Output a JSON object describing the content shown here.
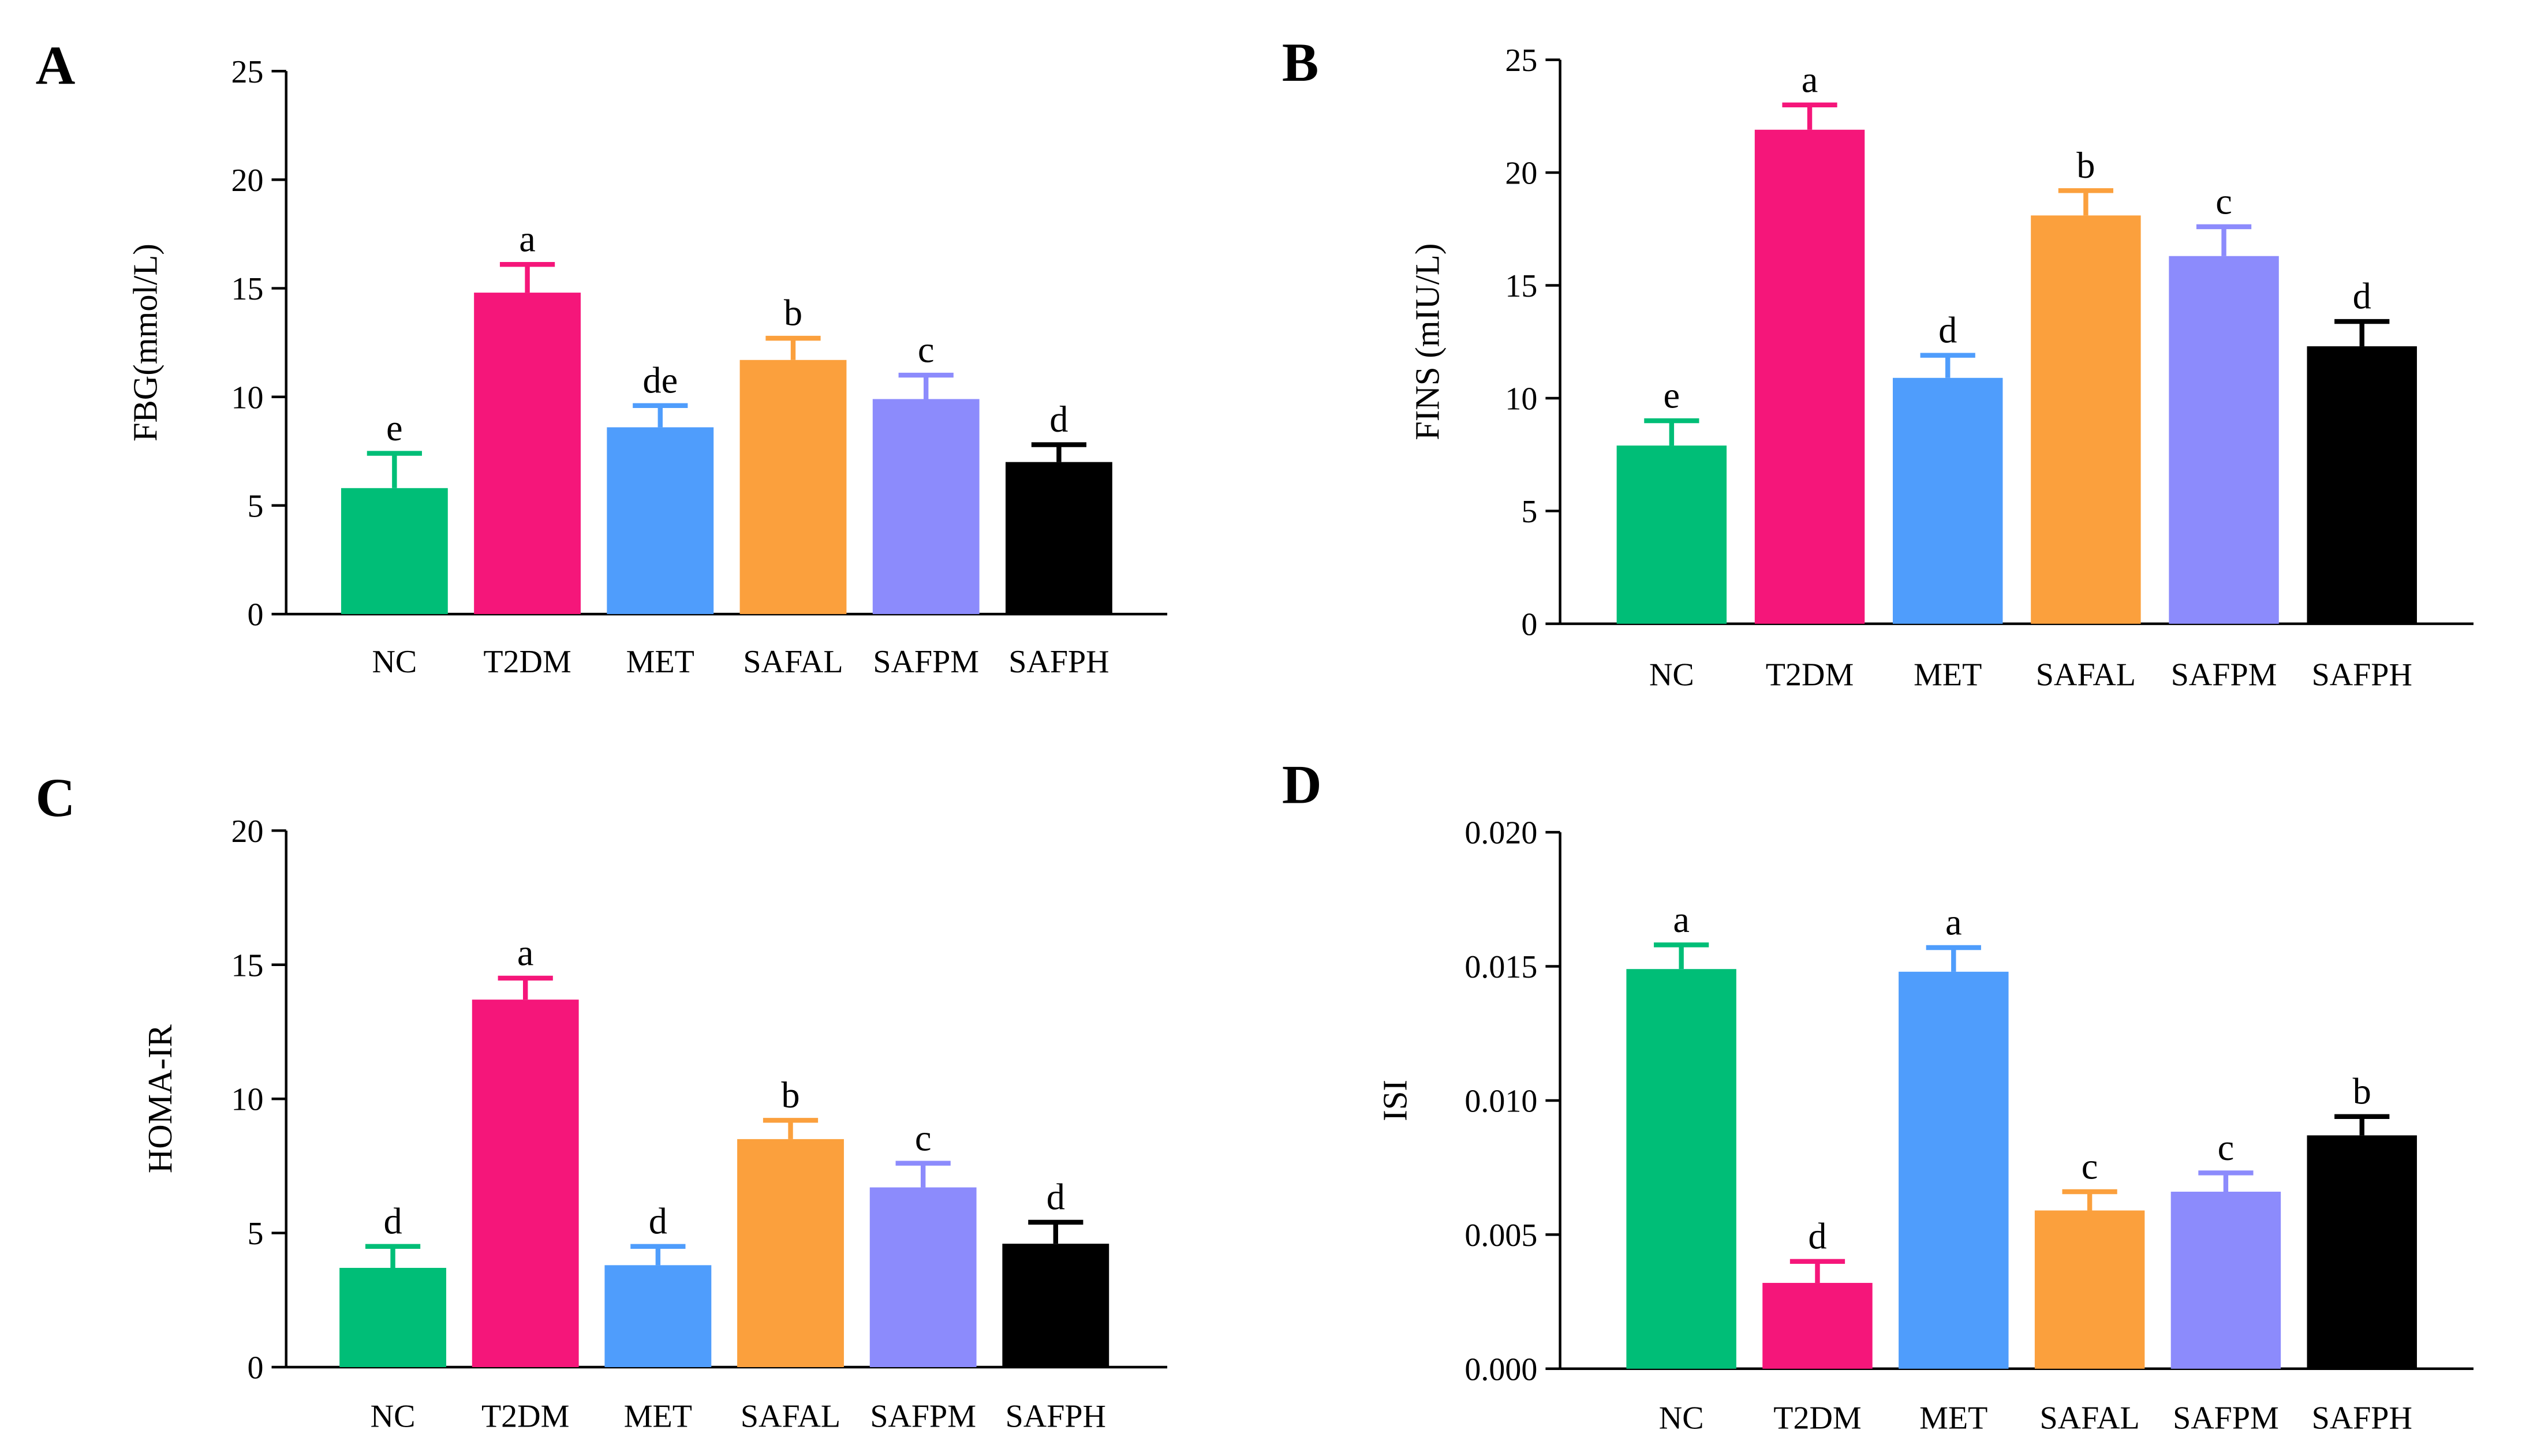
{
  "chart_data": [
    {
      "type": "bar",
      "panel": "A",
      "ylabel": "FBG(mmol/L)",
      "categories": [
        "NC",
        "T2DM",
        "MET",
        "SAFAL",
        "SAFPM",
        "SAFPH"
      ],
      "values": [
        5.8,
        14.8,
        8.6,
        11.7,
        9.9,
        7.0
      ],
      "errors": [
        1.6,
        1.3,
        1.0,
        1.0,
        1.1,
        0.8
      ],
      "significance": [
        "e",
        "a",
        "de",
        "b",
        "c",
        "d"
      ],
      "ylim": [
        0,
        25
      ],
      "yticks": [
        0,
        5,
        10,
        15,
        20,
        25
      ],
      "decimals": 0
    },
    {
      "type": "bar",
      "panel": "B",
      "ylabel": "FINS (mIU/L)",
      "categories": [
        "NC",
        "T2DM",
        "MET",
        "SAFAL",
        "SAFPM",
        "SAFPH"
      ],
      "values": [
        7.9,
        21.9,
        10.9,
        18.1,
        16.3,
        12.3
      ],
      "errors": [
        1.1,
        1.1,
        1.0,
        1.1,
        1.3,
        1.1
      ],
      "significance": [
        "e",
        "a",
        "d",
        "b",
        "c",
        "d"
      ],
      "ylim": [
        0,
        25
      ],
      "yticks": [
        0,
        5,
        10,
        15,
        20,
        25
      ],
      "decimals": 0
    },
    {
      "type": "bar",
      "panel": "C",
      "ylabel": "HOMA-IR",
      "categories": [
        "NC",
        "T2DM",
        "MET",
        "SAFAL",
        "SAFPM",
        "SAFPH"
      ],
      "values": [
        3.7,
        13.7,
        3.8,
        8.5,
        6.7,
        4.6
      ],
      "errors": [
        0.8,
        0.8,
        0.7,
        0.7,
        0.9,
        0.8
      ],
      "significance": [
        "d",
        "a",
        "d",
        "b",
        "c",
        "d"
      ],
      "ylim": [
        0,
        20
      ],
      "yticks": [
        0,
        5,
        10,
        15,
        20
      ],
      "decimals": 0
    },
    {
      "type": "bar",
      "panel": "D",
      "ylabel": "ISI",
      "categories": [
        "NC",
        "T2DM",
        "MET",
        "SAFAL",
        "SAFPM",
        "SAFPH"
      ],
      "values": [
        0.0149,
        0.0032,
        0.0148,
        0.0059,
        0.0066,
        0.0087
      ],
      "errors": [
        0.0009,
        0.0008,
        0.0009,
        0.0007,
        0.0007,
        0.0007
      ],
      "significance": [
        "a",
        "d",
        "a",
        "c",
        "c",
        "b"
      ],
      "ylim": [
        0,
        0.02
      ],
      "yticks": [
        0,
        0.005,
        0.01,
        0.015,
        0.02
      ],
      "decimals": 3
    }
  ],
  "colors": [
    "#00BE77",
    "#F5167A",
    "#4F9DFC",
    "#FBA03D",
    "#8C8BFC",
    "#000000"
  ]
}
